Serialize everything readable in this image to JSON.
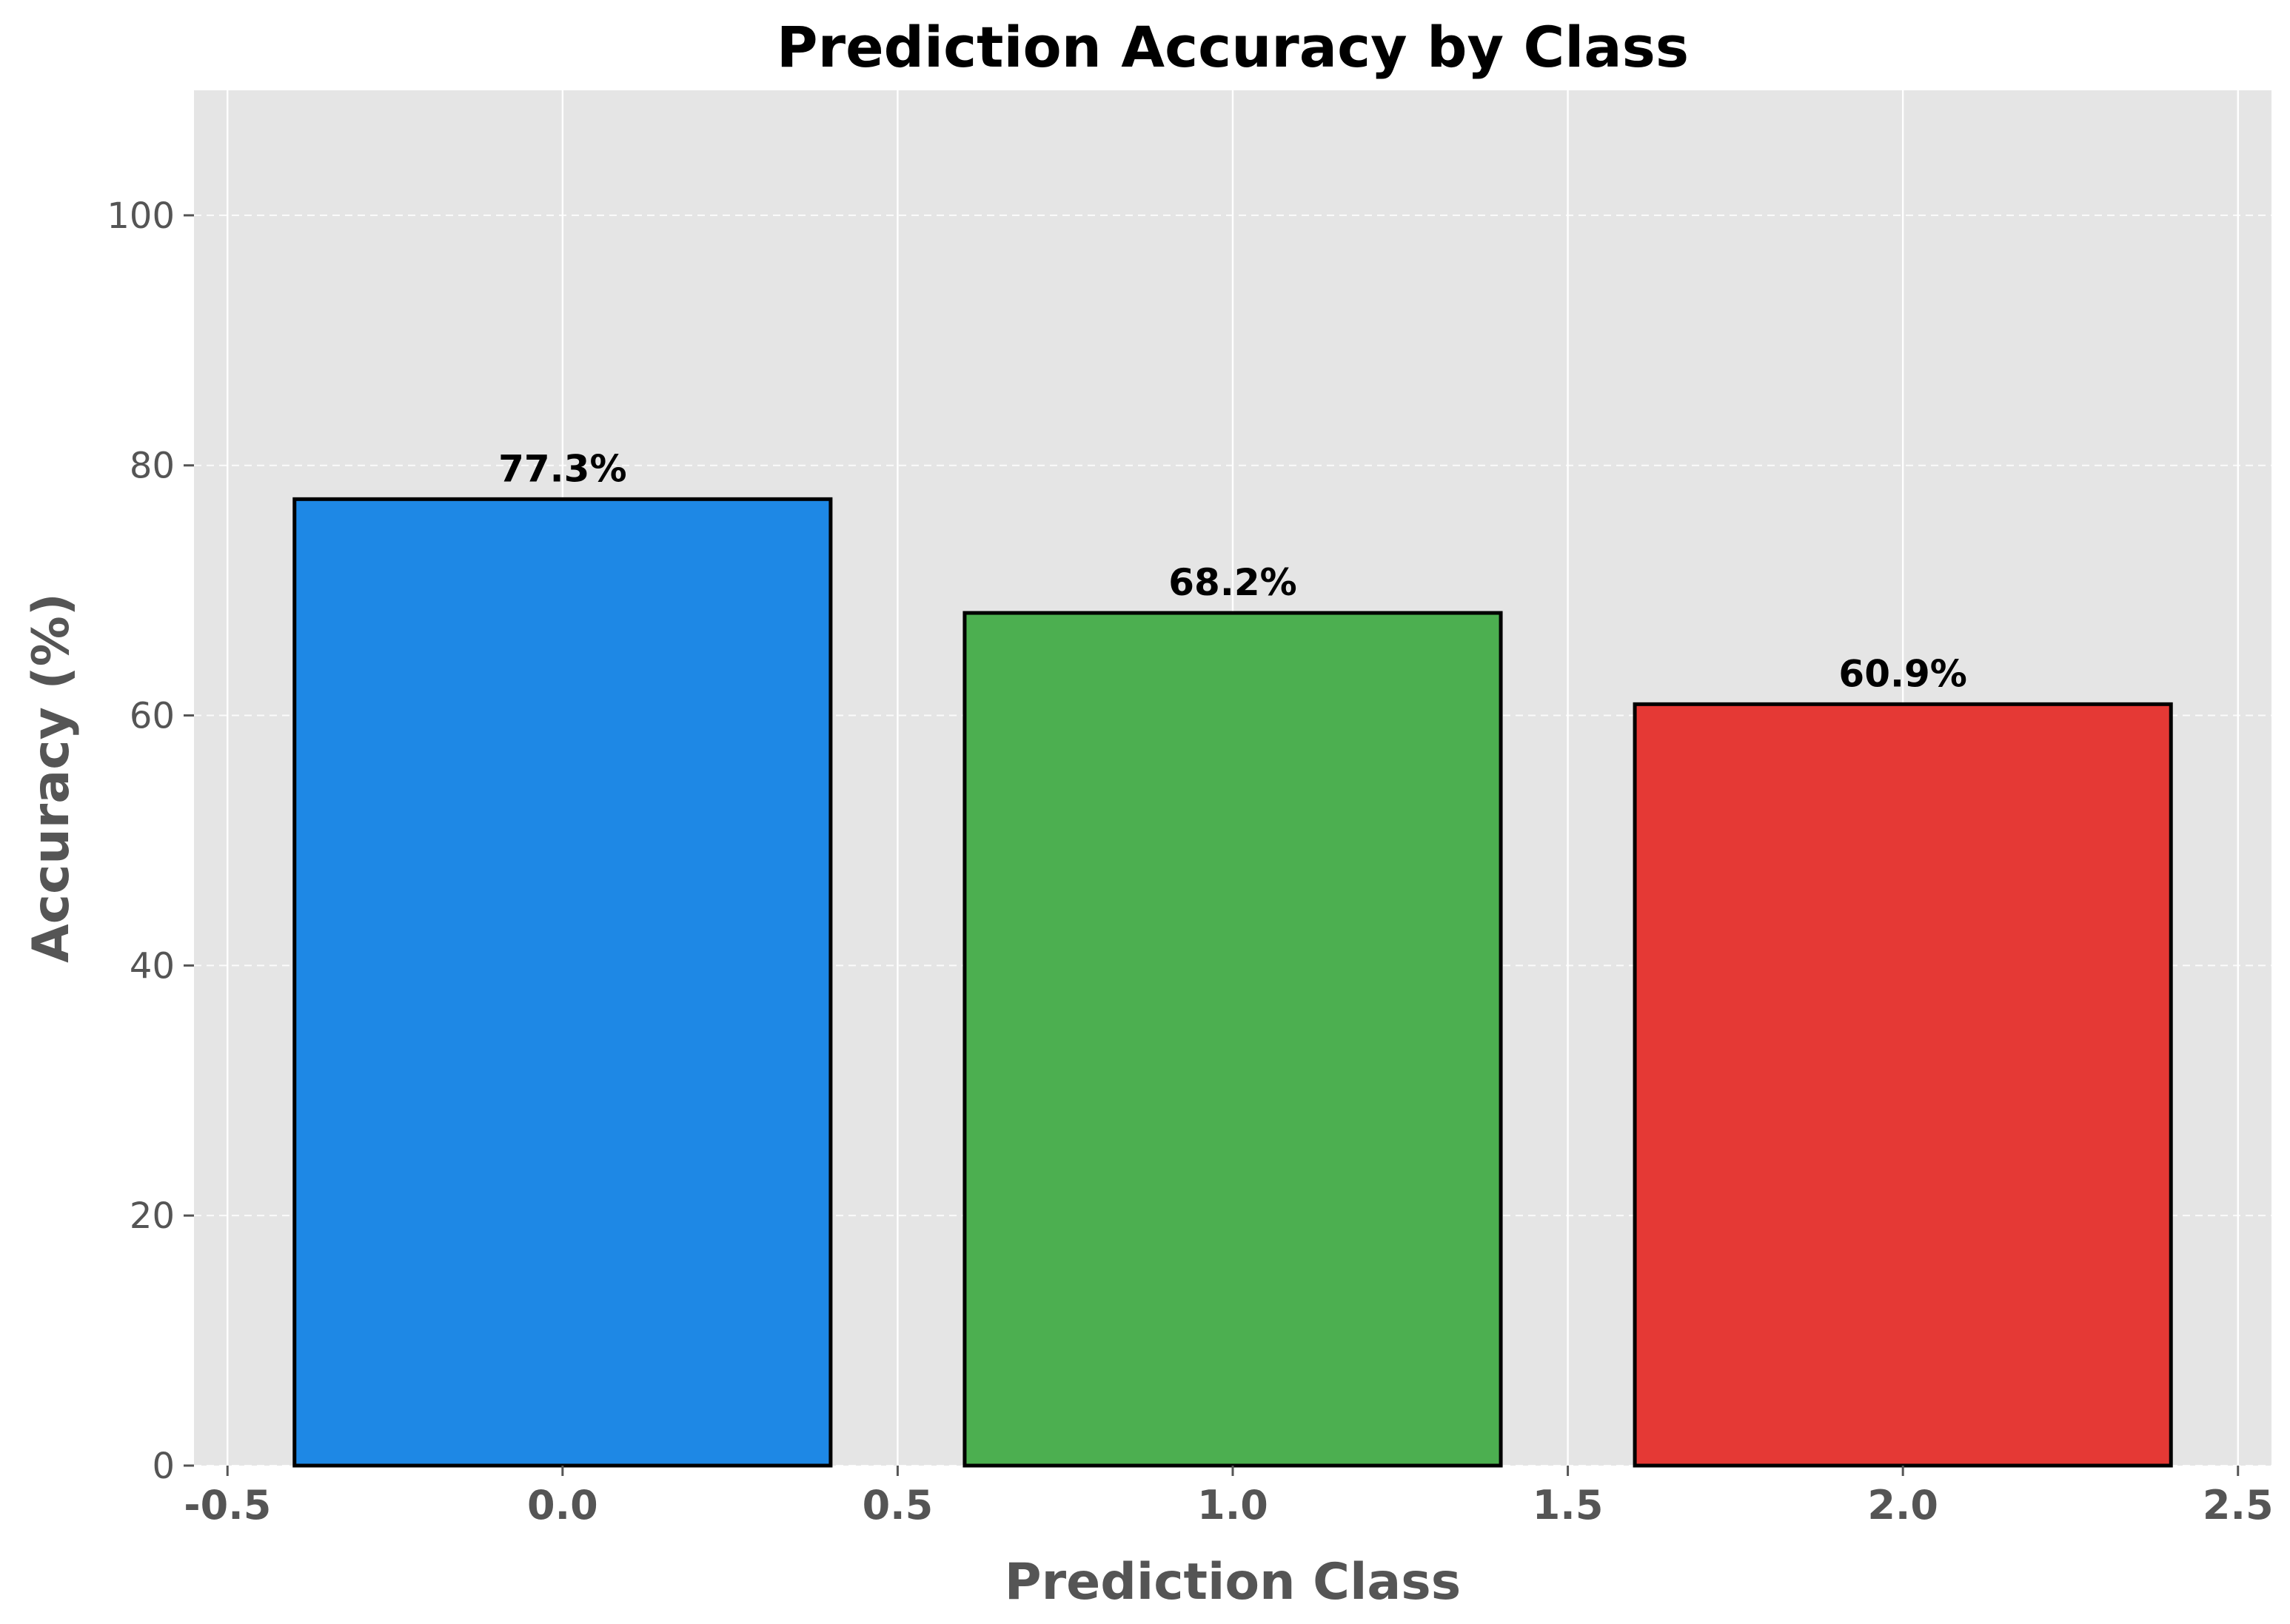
{
  "chart_data": {
    "type": "bar",
    "title": "Prediction Accuracy by Class",
    "xlabel": "Prediction Class",
    "ylabel": "Accuracy (%)",
    "x": [
      0,
      1,
      2
    ],
    "values": [
      77.3,
      68.2,
      60.9
    ],
    "value_labels": [
      "77.3%",
      "68.2%",
      "60.9%"
    ],
    "bar_width": 0.8,
    "bar_colors": [
      "#1e88e5",
      "#4caf50",
      "#e53935"
    ],
    "bar_edge_color": "#000000",
    "xlim": [
      -0.55,
      2.55
    ],
    "ylim": [
      0,
      110
    ],
    "xticks": [
      -0.5,
      0.0,
      0.5,
      1.0,
      1.5,
      2.0,
      2.5
    ],
    "xtick_labels": [
      "-0.5",
      "0.0",
      "0.5",
      "1.0",
      "1.5",
      "2.0",
      "2.5"
    ],
    "yticks": [
      0,
      20,
      40,
      60,
      80,
      100
    ],
    "ytick_labels": [
      "0",
      "20",
      "40",
      "60",
      "80",
      "100"
    ],
    "grid": true,
    "background_color": "#e5e5e5"
  }
}
